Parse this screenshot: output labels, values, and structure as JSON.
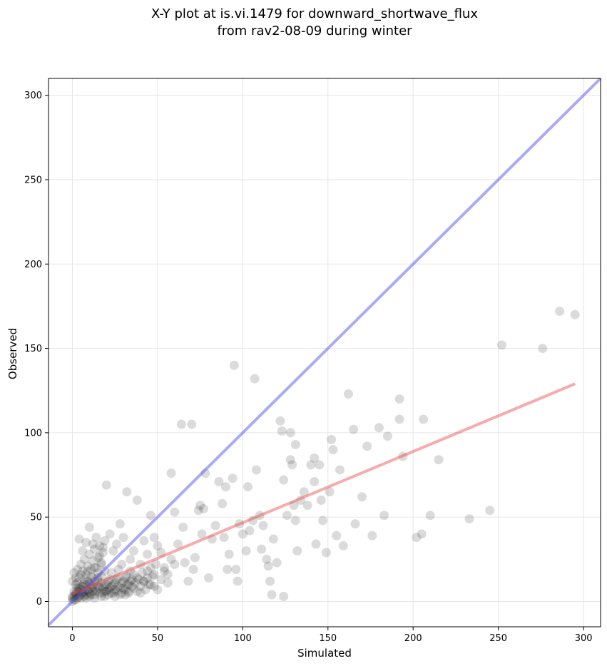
{
  "chart_data": {
    "type": "scatter",
    "title_lines": [
      "X-Y plot at is.vi.1479 for downward_shortwave_flux",
      "from rav2-08-09 during winter"
    ],
    "xlabel": "Simulated",
    "ylabel": "Observed",
    "xlim": [
      -14,
      310
    ],
    "ylim": [
      -15,
      310
    ],
    "xticks": [
      0,
      50,
      100,
      150,
      200,
      250,
      300
    ],
    "yticks": [
      0,
      50,
      100,
      150,
      200,
      250,
      300
    ],
    "grid": true,
    "colors": {
      "points": "#000000",
      "identity_line": "#5555ee",
      "fit_line": "#ee4444"
    },
    "identity_line": {
      "from": [
        -14,
        -14
      ],
      "to": [
        310,
        310
      ]
    },
    "fit_line": {
      "from": [
        0,
        4.5
      ],
      "to": [
        295,
        129
      ]
    },
    "points": [
      [
        0,
        0
      ],
      [
        1,
        1
      ],
      [
        0,
        2
      ],
      [
        2,
        1
      ],
      [
        1,
        3
      ],
      [
        3,
        2
      ],
      [
        2,
        5
      ],
      [
        4,
        3
      ],
      [
        3,
        6
      ],
      [
        5,
        4
      ],
      [
        4,
        8
      ],
      [
        6,
        5
      ],
      [
        5,
        2
      ],
      [
        7,
        6
      ],
      [
        6,
        9
      ],
      [
        8,
        4
      ],
      [
        7,
        11
      ],
      [
        9,
        7
      ],
      [
        8,
        2
      ],
      [
        10,
        5
      ],
      [
        9,
        12
      ],
      [
        11,
        8
      ],
      [
        10,
        3
      ],
      [
        12,
        6
      ],
      [
        11,
        10
      ],
      [
        13,
        4
      ],
      [
        12,
        14
      ],
      [
        14,
        7
      ],
      [
        13,
        2
      ],
      [
        15,
        9
      ],
      [
        16,
        5
      ],
      [
        15,
        12
      ],
      [
        17,
        3
      ],
      [
        18,
        8
      ],
      [
        17,
        15
      ],
      [
        19,
        6
      ],
      [
        20,
        10
      ],
      [
        19,
        3
      ],
      [
        21,
        7
      ],
      [
        22,
        13
      ],
      [
        21,
        4
      ],
      [
        23,
        9
      ],
      [
        24,
        5
      ],
      [
        23,
        17
      ],
      [
        25,
        11
      ],
      [
        26,
        6
      ],
      [
        25,
        3
      ],
      [
        27,
        14
      ],
      [
        28,
        8
      ],
      [
        27,
        19
      ],
      [
        29,
        5
      ],
      [
        30,
        12
      ],
      [
        29,
        22
      ],
      [
        31,
        7
      ],
      [
        32,
        15
      ],
      [
        31,
        4
      ],
      [
        33,
        10
      ],
      [
        34,
        18
      ],
      [
        33,
        6
      ],
      [
        35,
        13
      ],
      [
        0,
        12
      ],
      [
        1,
        17
      ],
      [
        2,
        10
      ],
      [
        3,
        19
      ],
      [
        4,
        14
      ],
      [
        5,
        22
      ],
      [
        6,
        18
      ],
      [
        7,
        25
      ],
      [
        8,
        16
      ],
      [
        9,
        21
      ],
      [
        10,
        28
      ],
      [
        11,
        19
      ],
      [
        12,
        24
      ],
      [
        13,
        31
      ],
      [
        14,
        20
      ],
      [
        15,
        26
      ],
      [
        16,
        33
      ],
      [
        17,
        23
      ],
      [
        18,
        29
      ],
      [
        19,
        36
      ],
      [
        4,
        37
      ],
      [
        6,
        30
      ],
      [
        8,
        35
      ],
      [
        10,
        44
      ],
      [
        12,
        34
      ],
      [
        14,
        38
      ],
      [
        16,
        27
      ],
      [
        18,
        32
      ],
      [
        20,
        69
      ],
      [
        22,
        40
      ],
      [
        24,
        30
      ],
      [
        26,
        34
      ],
      [
        28,
        46
      ],
      [
        30,
        38
      ],
      [
        32,
        65
      ],
      [
        34,
        25
      ],
      [
        36,
        30
      ],
      [
        38,
        60
      ],
      [
        40,
        22
      ],
      [
        42,
        36
      ],
      [
        36,
        8
      ],
      [
        38,
        14
      ],
      [
        40,
        5
      ],
      [
        42,
        12
      ],
      [
        44,
        18
      ],
      [
        46,
        10
      ],
      [
        48,
        16
      ],
      [
        50,
        7
      ],
      [
        52,
        13
      ],
      [
        54,
        18
      ],
      [
        56,
        11
      ],
      [
        44,
        28
      ],
      [
        46,
        51
      ],
      [
        48,
        38
      ],
      [
        50,
        33
      ],
      [
        52,
        29
      ],
      [
        54,
        20
      ],
      [
        56,
        16
      ],
      [
        58,
        25
      ],
      [
        60,
        22
      ],
      [
        58,
        76
      ],
      [
        60,
        53
      ],
      [
        62,
        34
      ],
      [
        64,
        105
      ],
      [
        65,
        44
      ],
      [
        66,
        23
      ],
      [
        68,
        12
      ],
      [
        70,
        105
      ],
      [
        71,
        19
      ],
      [
        72,
        26
      ],
      [
        74,
        54
      ],
      [
        75,
        57
      ],
      [
        76,
        40
      ],
      [
        77,
        55
      ],
      [
        78,
        76
      ],
      [
        80,
        14
      ],
      [
        82,
        37
      ],
      [
        84,
        45
      ],
      [
        86,
        71
      ],
      [
        88,
        58
      ],
      [
        89,
        38
      ],
      [
        90,
        68
      ],
      [
        91,
        19
      ],
      [
        92,
        28
      ],
      [
        94,
        73
      ],
      [
        95,
        140
      ],
      [
        96,
        19
      ],
      [
        97,
        12
      ],
      [
        98,
        46
      ],
      [
        100,
        40
      ],
      [
        102,
        30
      ],
      [
        103,
        68
      ],
      [
        104,
        42
      ],
      [
        106,
        48
      ],
      [
        107,
        132
      ],
      [
        108,
        78
      ],
      [
        110,
        51
      ],
      [
        111,
        31
      ],
      [
        112,
        45
      ],
      [
        114,
        25
      ],
      [
        115,
        21
      ],
      [
        116,
        12
      ],
      [
        117,
        4
      ],
      [
        118,
        37
      ],
      [
        120,
        23
      ],
      [
        122,
        107
      ],
      [
        123,
        101
      ],
      [
        124,
        72
      ],
      [
        124,
        3
      ],
      [
        126,
        51
      ],
      [
        128,
        84
      ],
      [
        128,
        100
      ],
      [
        129,
        81
      ],
      [
        130,
        57
      ],
      [
        131,
        48
      ],
      [
        131,
        93
      ],
      [
        132,
        30
      ],
      [
        134,
        60
      ],
      [
        136,
        65
      ],
      [
        138,
        57
      ],
      [
        140,
        81
      ],
      [
        142,
        85
      ],
      [
        142,
        71
      ],
      [
        143,
        34
      ],
      [
        145,
        81
      ],
      [
        146,
        60
      ],
      [
        147,
        48
      ],
      [
        149,
        29
      ],
      [
        151,
        65
      ],
      [
        152,
        96
      ],
      [
        153,
        90
      ],
      [
        155,
        39
      ],
      [
        157,
        78
      ],
      [
        159,
        33
      ],
      [
        162,
        123
      ],
      [
        165,
        102
      ],
      [
        166,
        46
      ],
      [
        170,
        62
      ],
      [
        173,
        92
      ],
      [
        176,
        39
      ],
      [
        180,
        103
      ],
      [
        183,
        51
      ],
      [
        185,
        98
      ],
      [
        192,
        120
      ],
      [
        192,
        108
      ],
      [
        194,
        86
      ],
      [
        202,
        38
      ],
      [
        205,
        40
      ],
      [
        206,
        108
      ],
      [
        210,
        51
      ],
      [
        215,
        84
      ],
      [
        233,
        49
      ],
      [
        245,
        54
      ],
      [
        252,
        152
      ],
      [
        276,
        150
      ],
      [
        286,
        172
      ],
      [
        295,
        170
      ],
      [
        0,
        3
      ],
      [
        1,
        6
      ],
      [
        2,
        4
      ],
      [
        3,
        8
      ],
      [
        4,
        6
      ],
      [
        5,
        9
      ],
      [
        6,
        7
      ],
      [
        7,
        3
      ],
      [
        8,
        10
      ],
      [
        9,
        6
      ],
      [
        10,
        11
      ],
      [
        11,
        4
      ],
      [
        12,
        9
      ],
      [
        13,
        12
      ],
      [
        14,
        6
      ],
      [
        15,
        14
      ],
      [
        16,
        8
      ],
      [
        17,
        11
      ],
      [
        18,
        5
      ],
      [
        19,
        9
      ],
      [
        20,
        6
      ],
      [
        21,
        12
      ],
      [
        22,
        8
      ],
      [
        23,
        5
      ],
      [
        24,
        10
      ],
      [
        25,
        7
      ],
      [
        26,
        13
      ],
      [
        27,
        9
      ],
      [
        28,
        4
      ],
      [
        29,
        11
      ],
      [
        30,
        8
      ],
      [
        31,
        14
      ],
      [
        32,
        10
      ],
      [
        33,
        5
      ],
      [
        34,
        12
      ],
      [
        35,
        9
      ],
      [
        36,
        16
      ],
      [
        37,
        11
      ],
      [
        38,
        6
      ],
      [
        39,
        13
      ],
      [
        40,
        9
      ],
      [
        41,
        17
      ],
      [
        42,
        12
      ],
      [
        43,
        7
      ],
      [
        44,
        14
      ],
      [
        45,
        10
      ],
      [
        46,
        20
      ],
      [
        47,
        15
      ],
      [
        48,
        9
      ],
      [
        49,
        22
      ],
      [
        2,
        14
      ],
      [
        3,
        11
      ],
      [
        5,
        16
      ],
      [
        7,
        13
      ],
      [
        9,
        18
      ],
      [
        11,
        15
      ],
      [
        13,
        20
      ],
      [
        15,
        17
      ],
      [
        17,
        22
      ],
      [
        19,
        18
      ]
    ]
  }
}
